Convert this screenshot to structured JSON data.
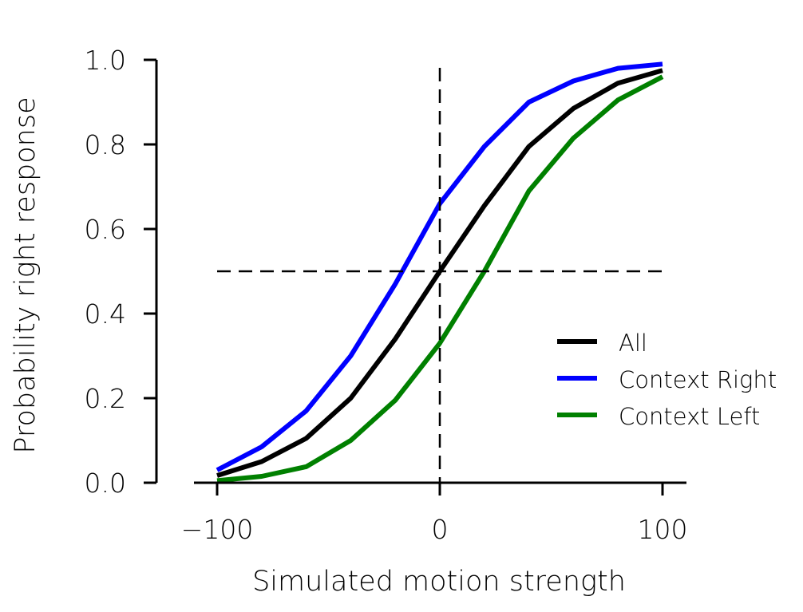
{
  "chart_data": {
    "type": "line",
    "xlabel": "Simulated motion strength",
    "ylabel": "Probability right response",
    "xlim": [
      -110,
      110
    ],
    "ylim": [
      0,
      1.0
    ],
    "xticks": [
      -100,
      0,
      100
    ],
    "xtick_labels": [
      "−100",
      "0",
      "100"
    ],
    "yticks": [
      0.0,
      0.2,
      0.4,
      0.6,
      0.8,
      1.0
    ],
    "ytick_labels": [
      "0.0",
      "0.2",
      "0.4",
      "0.6",
      "0.8",
      "1.0"
    ],
    "x": [
      -100,
      -80,
      -60,
      -40,
      -20,
      0,
      20,
      40,
      60,
      80,
      100
    ],
    "series": [
      {
        "name": "All",
        "color": "#000000",
        "values": [
          0.017,
          0.05,
          0.105,
          0.2,
          0.34,
          0.5,
          0.655,
          0.795,
          0.885,
          0.945,
          0.975
        ]
      },
      {
        "name": "Context Right",
        "color": "#0000ff",
        "values": [
          0.03,
          0.085,
          0.17,
          0.3,
          0.47,
          0.66,
          0.795,
          0.9,
          0.95,
          0.98,
          0.99
        ]
      },
      {
        "name": "Context Left",
        "color": "#008000",
        "values": [
          0.005,
          0.015,
          0.038,
          0.1,
          0.195,
          0.33,
          0.5,
          0.69,
          0.815,
          0.905,
          0.96
        ]
      }
    ],
    "reference_lines": {
      "horizontal_y": 0.5,
      "vertical_x": 0
    },
    "legend_position": "bottom-right",
    "grid": false
  }
}
